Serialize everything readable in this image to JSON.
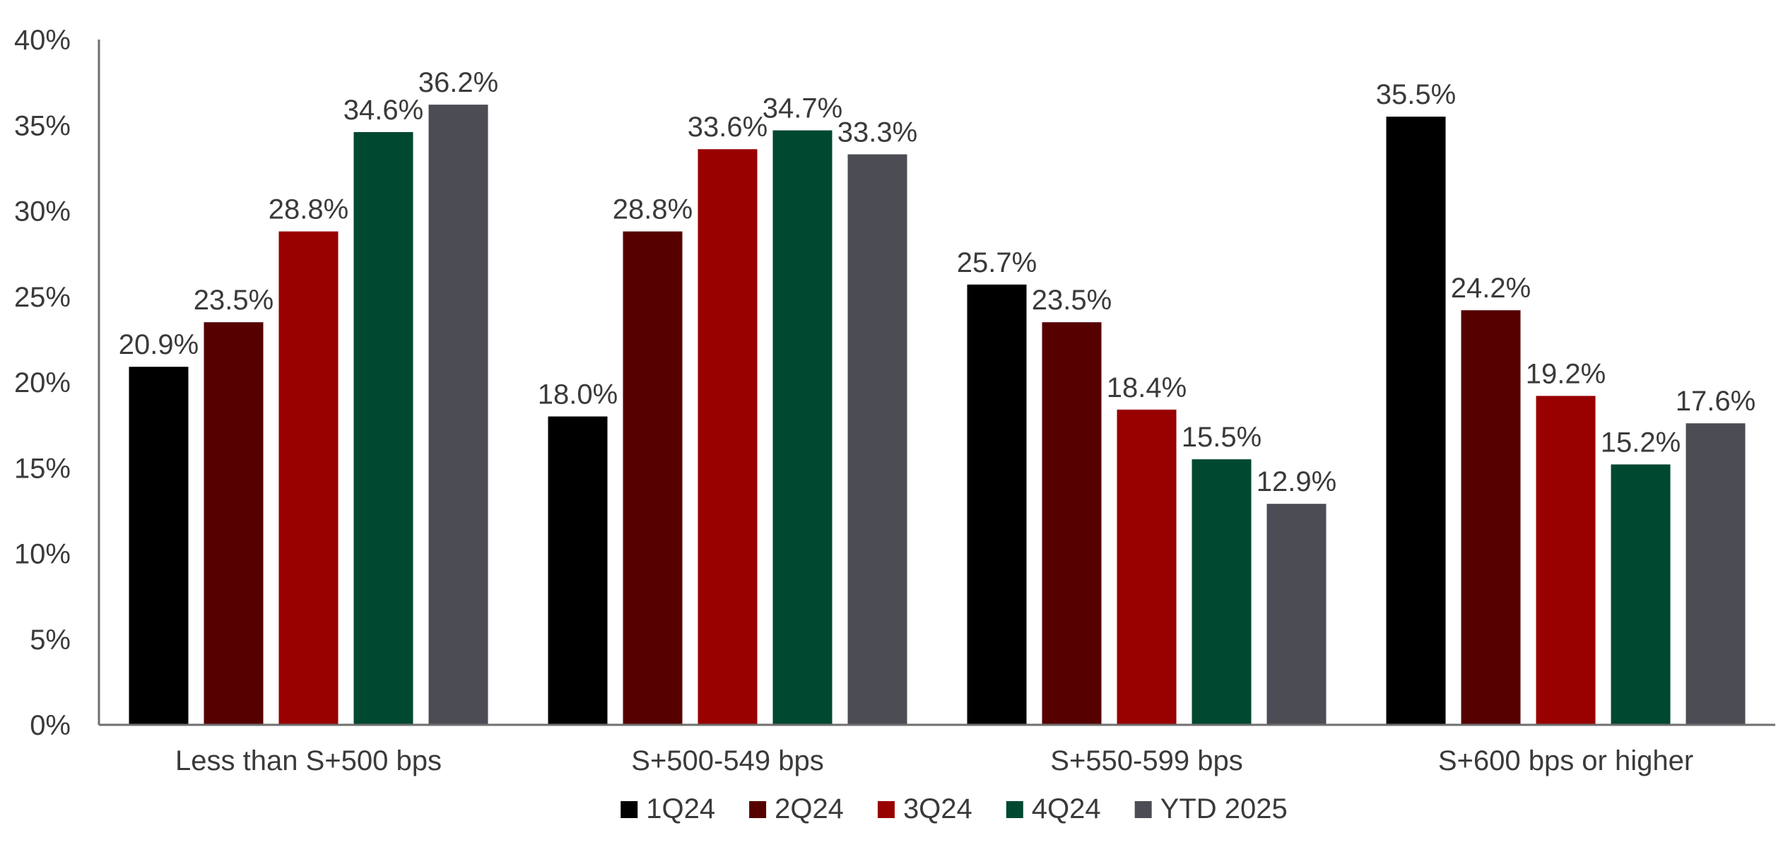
{
  "chart_data": {
    "type": "bar",
    "title": "",
    "xlabel": "",
    "ylabel": "",
    "categories": [
      "Less than S+500 bps",
      "S+500-549 bps",
      "S+550-599 bps",
      "S+600 bps or higher"
    ],
    "series": [
      {
        "name": "1Q24",
        "color": "#000000",
        "values": [
          20.9,
          18.0,
          25.7,
          35.5
        ]
      },
      {
        "name": "2Q24",
        "color": "#560000",
        "values": [
          23.5,
          28.8,
          23.5,
          24.2
        ]
      },
      {
        "name": "3Q24",
        "color": "#990000",
        "values": [
          28.8,
          33.6,
          18.4,
          19.2
        ]
      },
      {
        "name": "4Q24",
        "color": "#004830",
        "values": [
          34.6,
          34.7,
          15.5,
          15.2
        ]
      },
      {
        "name": "YTD 2025",
        "color": "#4c4c54",
        "values": [
          36.2,
          33.3,
          12.9,
          17.6
        ]
      }
    ],
    "value_labels": [
      [
        "20.9%",
        "18.0%",
        "25.7%",
        "35.5%"
      ],
      [
        "23.5%",
        "28.8%",
        "23.5%",
        "24.2%"
      ],
      [
        "28.8%",
        "33.6%",
        "18.4%",
        "19.2%"
      ],
      [
        "34.6%",
        "34.7%",
        "15.5%",
        "15.2%"
      ],
      [
        "36.2%",
        "33.3%",
        "12.9%",
        "17.6%"
      ]
    ],
    "ylim": [
      0,
      40
    ],
    "yticks": [
      0,
      5,
      10,
      15,
      20,
      25,
      30,
      35,
      40
    ],
    "ytick_labels": [
      "0%",
      "5%",
      "10%",
      "15%",
      "20%",
      "25%",
      "30%",
      "35%",
      "40%"
    ],
    "grid": false,
    "legend_position": "bottom-center"
  }
}
